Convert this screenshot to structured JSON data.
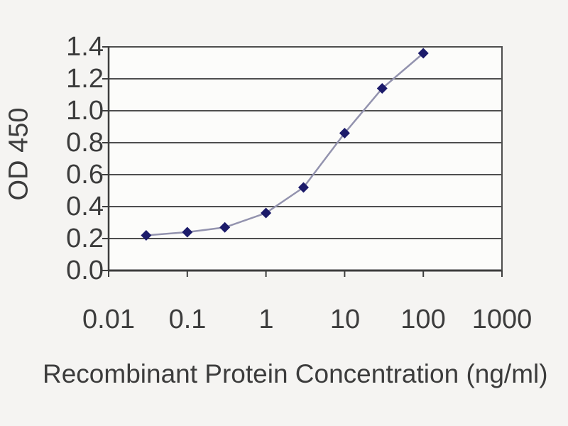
{
  "chart_data": {
    "type": "line",
    "title": "",
    "xlabel": "Recombinant Protein Concentration (ng/ml)",
    "ylabel": "OD 450",
    "x_scale": "log",
    "xlim": [
      0.01,
      1000
    ],
    "ylim": [
      0,
      1.4
    ],
    "x_ticks": [
      "0.01",
      "0.1",
      "1",
      "10",
      "100",
      "1000"
    ],
    "y_ticks": [
      "1.4",
      "1.2",
      "1.0",
      "0.8",
      "0.6",
      "0.4",
      "0.2",
      "0.0"
    ],
    "grid": "horizontal-only",
    "legend": "none",
    "series": [
      {
        "x": [
          0.03,
          0.1,
          0.3,
          1,
          3,
          10,
          30,
          100
        ],
        "y": [
          0.22,
          0.24,
          0.27,
          0.36,
          0.52,
          0.86,
          1.14,
          1.36
        ],
        "marker": "diamond",
        "marker_color": "#1c1b6a",
        "line_color": "#9393ae"
      }
    ],
    "colors": {
      "background": "#f5f4f2",
      "plot_background": "#fcfcfa",
      "gridline": "#4e4e4e",
      "axis": "#3d3d3d",
      "text": "#3c3c3c"
    }
  }
}
